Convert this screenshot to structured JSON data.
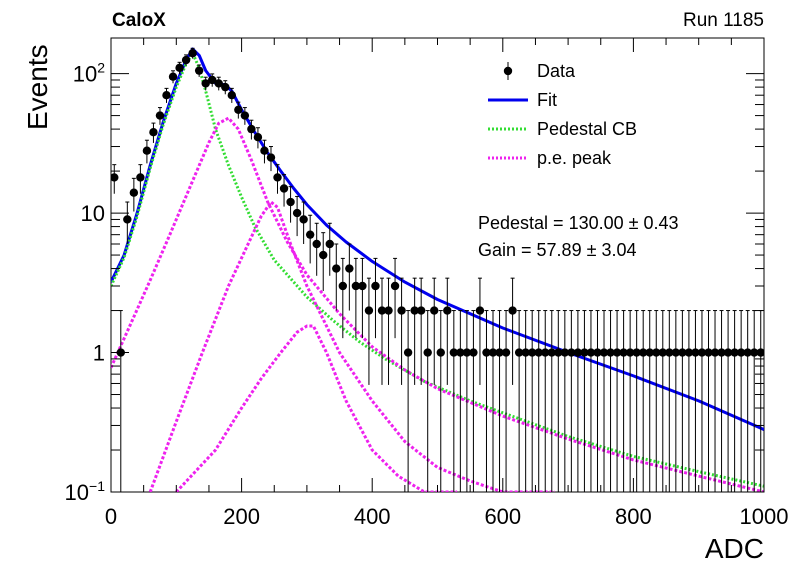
{
  "chart_data": {
    "type": "scatter",
    "title_left": "CaloX",
    "title_right": "Run 1185",
    "xlabel": "ADC",
    "ylabel": "Events",
    "xlim": [
      0,
      1000
    ],
    "ylim": [
      0.1,
      180
    ],
    "yscale": "log",
    "x_ticks": [
      0,
      200,
      400,
      600,
      800,
      1000
    ],
    "y_ticks": [
      {
        "value": 0.1,
        "base": "10",
        "exp": "−1"
      },
      {
        "value": 1,
        "label": "1"
      },
      {
        "value": 10,
        "label": "10"
      },
      {
        "value": 100,
        "base": "10",
        "exp": "2"
      }
    ],
    "legend": {
      "position": "top-right",
      "entries": [
        {
          "label": "Data",
          "style": "marker",
          "color": "#000000"
        },
        {
          "label": "Fit",
          "style": "line",
          "color": "#0000ee"
        },
        {
          "label": "Pedestal CB",
          "style": "dotted",
          "color": "#33dd33"
        },
        {
          "label": "p.e. peak",
          "style": "dotted",
          "color": "#ee22ee"
        }
      ]
    },
    "annotations": [
      "Pedestal = 130.00 ± 0.43",
      "Gain = 57.89 ± 3.04"
    ],
    "fit_params": {
      "pedestal": 130.0,
      "pedestal_err": 0.43,
      "gain": 57.89,
      "gain_err": 3.04
    },
    "series": [
      {
        "name": "Data",
        "kind": "points",
        "x": [
          5,
          15,
          25,
          35,
          45,
          55,
          65,
          75,
          85,
          95,
          105,
          115,
          125,
          135,
          145,
          155,
          165,
          175,
          185,
          195,
          205,
          215,
          225,
          235,
          245,
          255,
          265,
          275,
          285,
          295,
          305,
          315,
          325,
          335,
          345,
          355,
          365,
          375,
          385,
          395,
          405,
          415,
          425,
          435,
          445,
          455,
          465,
          475,
          485,
          495,
          505,
          515,
          525,
          535,
          545,
          555,
          565,
          575,
          585,
          595,
          605,
          615,
          625,
          635,
          645,
          655,
          665,
          675,
          685,
          695,
          705,
          715,
          725,
          735,
          745,
          755,
          765,
          775,
          785,
          795,
          805,
          815,
          825,
          835,
          845,
          855,
          865,
          875,
          885,
          895,
          905,
          915,
          925,
          935,
          945,
          955,
          965,
          975,
          985,
          995
        ],
        "y": [
          18,
          1,
          9,
          14,
          18,
          28,
          38,
          50,
          70,
          95,
          110,
          125,
          140,
          105,
          85,
          90,
          85,
          80,
          70,
          55,
          50,
          40,
          35,
          28,
          25,
          18,
          15,
          12,
          10,
          9,
          7,
          6,
          5,
          6,
          4,
          3,
          4,
          3,
          3,
          2,
          3,
          2,
          2,
          3,
          2,
          1,
          2,
          2,
          1,
          2,
          1,
          2,
          1,
          1,
          1,
          1,
          2,
          1,
          1,
          1,
          1,
          2,
          1,
          1,
          1,
          1,
          1,
          1,
          1,
          1,
          1,
          1,
          1,
          1,
          1,
          1,
          1,
          1,
          1,
          1,
          1,
          1,
          1,
          1,
          1,
          1,
          1,
          1,
          1,
          1,
          1,
          1,
          1,
          1,
          1,
          1,
          1,
          1,
          1,
          1
        ]
      },
      {
        "name": "Fit",
        "kind": "line",
        "color": "#0000ee",
        "x": [
          0,
          20,
          40,
          60,
          80,
          100,
          115,
          125,
          135,
          145,
          160,
          175,
          185,
          200,
          220,
          240,
          260,
          280,
          300,
          330,
          360,
          400,
          450,
          500,
          550,
          600,
          700,
          800,
          900,
          1000
        ],
        "y": [
          3.2,
          5,
          10,
          22,
          45,
          85,
          125,
          150,
          135,
          105,
          85,
          83,
          75,
          55,
          38,
          27,
          20,
          15,
          11.5,
          8.2,
          6.2,
          4.5,
          3.2,
          2.4,
          1.9,
          1.5,
          1.0,
          0.68,
          0.45,
          0.28
        ]
      },
      {
        "name": "Pedestal CB",
        "kind": "line",
        "color": "#33dd33",
        "x": [
          0,
          20,
          40,
          60,
          80,
          100,
          115,
          125,
          135,
          145,
          160,
          180,
          200,
          220,
          250,
          280,
          300,
          340,
          380,
          420,
          480,
          550,
          600,
          700,
          800,
          900,
          1000
        ],
        "y": [
          3,
          4.8,
          9.5,
          21,
          43,
          80,
          118,
          140,
          110,
          75,
          40,
          22,
          13,
          8,
          4.6,
          3.2,
          2.5,
          1.7,
          1.2,
          0.9,
          0.62,
          0.45,
          0.37,
          0.25,
          0.18,
          0.14,
          0.11
        ]
      },
      {
        "name": "p.e. peak",
        "kind": "line",
        "color": "#ee22ee",
        "x": [
          0,
          30,
          60,
          90,
          120,
          150,
          165,
          180,
          195,
          215,
          240,
          270,
          300,
          350,
          400,
          450,
          500,
          600,
          700,
          800,
          900,
          1000
        ],
        "y": [
          0.78,
          1.6,
          3.3,
          7,
          15,
          32,
          44,
          48,
          40,
          24,
          12,
          6.2,
          3.6,
          1.9,
          1.1,
          0.75,
          0.55,
          0.35,
          0.24,
          0.17,
          0.13,
          0.1
        ]
      },
      {
        "name": "p.e. peak",
        "kind": "line",
        "color": "#ee22ee",
        "x": [
          60,
          100,
          140,
          180,
          210,
          230,
          245,
          255,
          275,
          300,
          350,
          400,
          450,
          500,
          550,
          600,
          680
        ],
        "y": [
          0.1,
          0.32,
          1.0,
          3.0,
          6.0,
          9.5,
          12,
          11,
          6.0,
          3.0,
          1.0,
          0.45,
          0.23,
          0.15,
          0.12,
          0.1,
          0.1
        ]
      },
      {
        "name": "p.e. peak",
        "kind": "line",
        "color": "#ee22ee",
        "x": [
          100,
          160,
          200,
          230,
          260,
          285,
          300,
          310,
          330,
          360,
          400,
          440,
          480,
          530
        ],
        "y": [
          0.1,
          0.2,
          0.4,
          0.65,
          1.0,
          1.4,
          1.55,
          1.55,
          1.0,
          0.45,
          0.2,
          0.13,
          0.1,
          0.1
        ]
      }
    ]
  }
}
